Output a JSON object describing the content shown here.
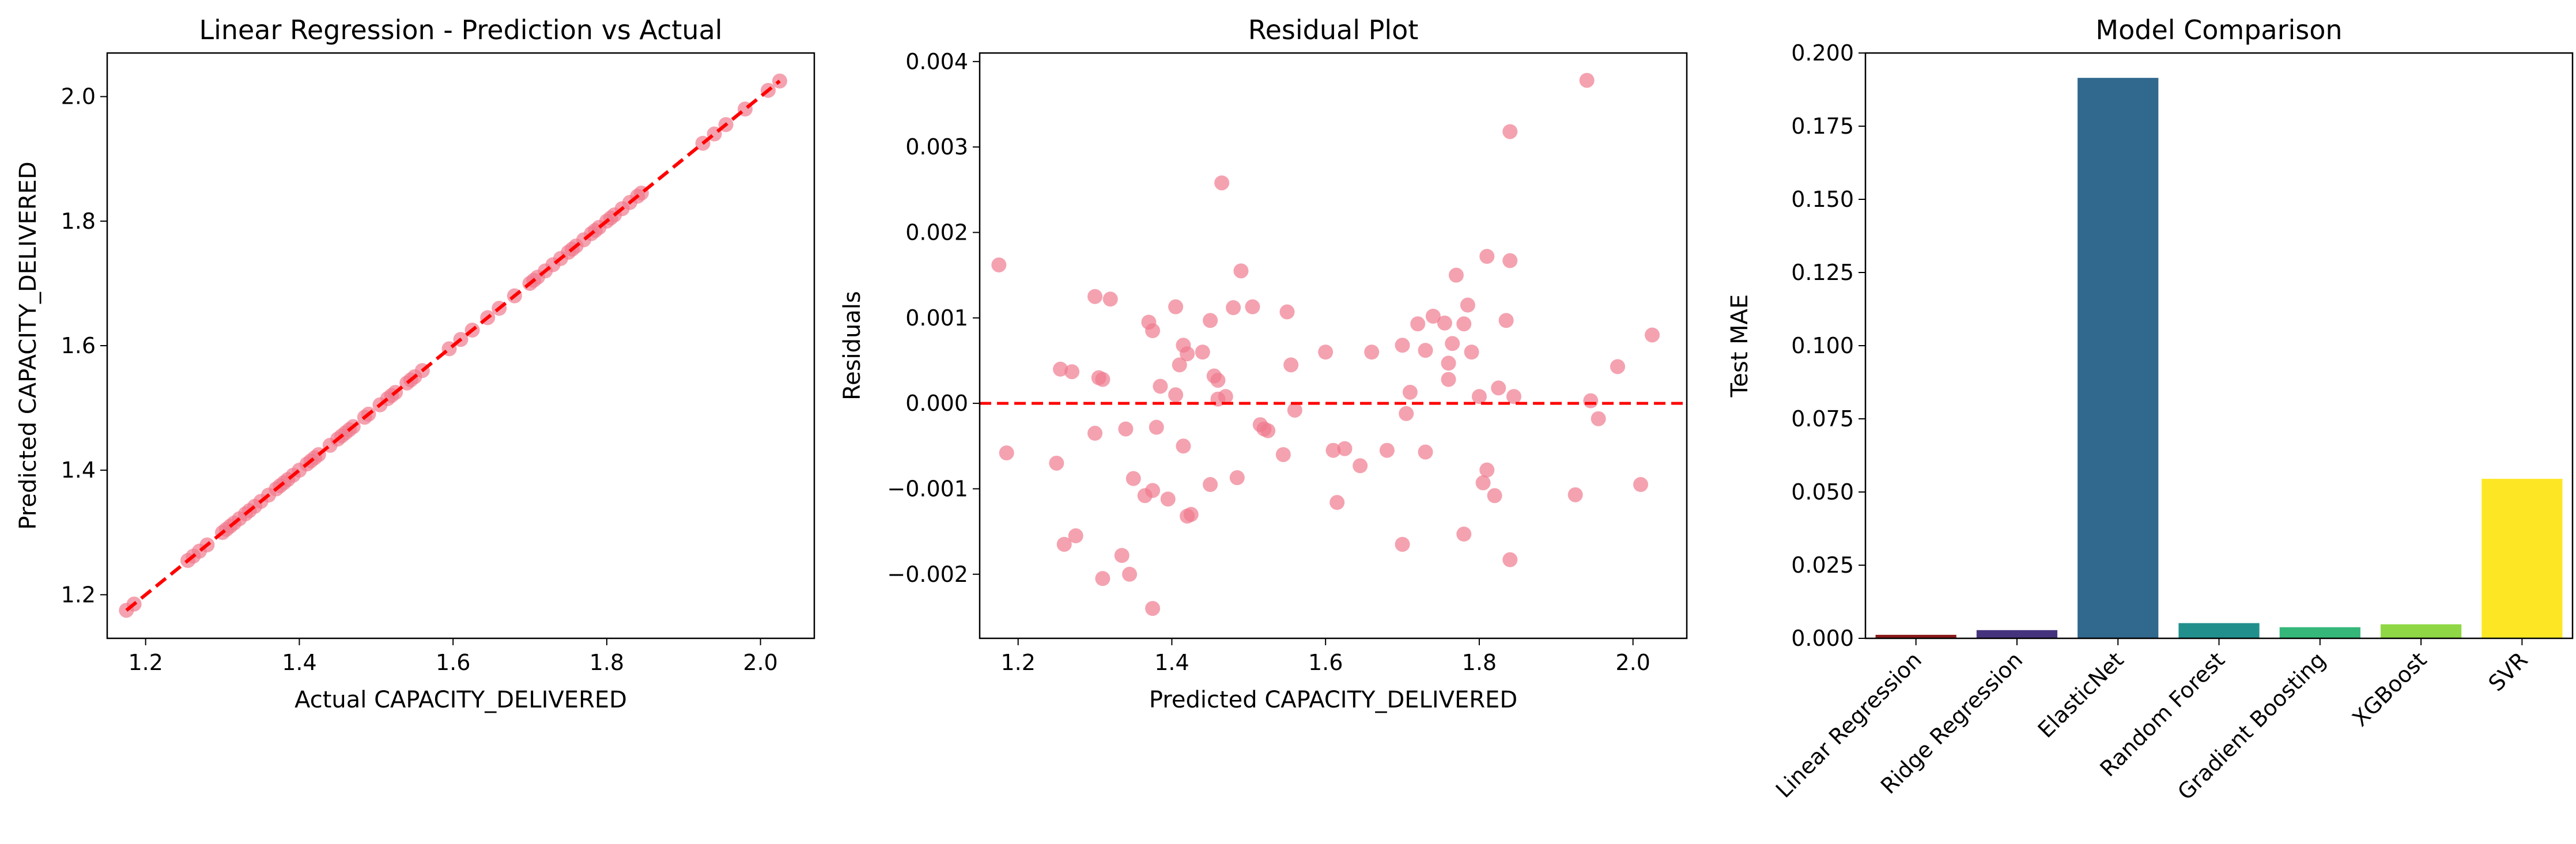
{
  "chart_data": [
    {
      "type": "scatter",
      "title": "Linear Regression - Prediction vs Actual",
      "xlabel": "Actual CAPACITY_DELIVERED",
      "ylabel": "Predicted CAPACITY_DELIVERED",
      "xlim": [
        1.15,
        2.07
      ],
      "ylim": [
        1.13,
        2.07
      ],
      "xticks": [
        1.2,
        1.4,
        1.6,
        1.8,
        2.0
      ],
      "xtick_labels": [
        "1.2",
        "1.4",
        "1.6",
        "1.8",
        "2.0"
      ],
      "yticks": [
        1.2,
        1.4,
        1.6,
        1.8,
        2.0
      ],
      "ytick_labels": [
        "1.2",
        "1.4",
        "1.6",
        "1.8",
        "2.0"
      ],
      "point_color": "#f07a8f",
      "reference_line": {
        "style": "dashed",
        "color": "#ff0000",
        "from": [
          1.175,
          1.175
        ],
        "to": [
          2.025,
          2.025
        ]
      },
      "points": [
        [
          1.175,
          1.175
        ],
        [
          1.185,
          1.185
        ],
        [
          1.255,
          1.255
        ],
        [
          1.262,
          1.262
        ],
        [
          1.27,
          1.27
        ],
        [
          1.28,
          1.28
        ],
        [
          1.3,
          1.3
        ],
        [
          1.305,
          1.305
        ],
        [
          1.31,
          1.31
        ],
        [
          1.315,
          1.315
        ],
        [
          1.322,
          1.322
        ],
        [
          1.33,
          1.33
        ],
        [
          1.335,
          1.335
        ],
        [
          1.342,
          1.342
        ],
        [
          1.35,
          1.35
        ],
        [
          1.36,
          1.36
        ],
        [
          1.37,
          1.37
        ],
        [
          1.375,
          1.375
        ],
        [
          1.38,
          1.38
        ],
        [
          1.385,
          1.385
        ],
        [
          1.392,
          1.392
        ],
        [
          1.4,
          1.4
        ],
        [
          1.41,
          1.41
        ],
        [
          1.415,
          1.415
        ],
        [
          1.42,
          1.42
        ],
        [
          1.425,
          1.425
        ],
        [
          1.44,
          1.44
        ],
        [
          1.45,
          1.45
        ],
        [
          1.455,
          1.455
        ],
        [
          1.46,
          1.46
        ],
        [
          1.465,
          1.465
        ],
        [
          1.47,
          1.47
        ],
        [
          1.485,
          1.485
        ],
        [
          1.49,
          1.49
        ],
        [
          1.505,
          1.505
        ],
        [
          1.515,
          1.515
        ],
        [
          1.52,
          1.52
        ],
        [
          1.525,
          1.525
        ],
        [
          1.54,
          1.54
        ],
        [
          1.545,
          1.545
        ],
        [
          1.55,
          1.55
        ],
        [
          1.56,
          1.56
        ],
        [
          1.595,
          1.595
        ],
        [
          1.61,
          1.61
        ],
        [
          1.625,
          1.625
        ],
        [
          1.645,
          1.645
        ],
        [
          1.66,
          1.66
        ],
        [
          1.68,
          1.68
        ],
        [
          1.7,
          1.7
        ],
        [
          1.705,
          1.705
        ],
        [
          1.71,
          1.71
        ],
        [
          1.72,
          1.72
        ],
        [
          1.73,
          1.73
        ],
        [
          1.74,
          1.74
        ],
        [
          1.75,
          1.75
        ],
        [
          1.755,
          1.755
        ],
        [
          1.76,
          1.76
        ],
        [
          1.77,
          1.77
        ],
        [
          1.78,
          1.78
        ],
        [
          1.785,
          1.785
        ],
        [
          1.79,
          1.79
        ],
        [
          1.8,
          1.8
        ],
        [
          1.805,
          1.805
        ],
        [
          1.81,
          1.81
        ],
        [
          1.82,
          1.82
        ],
        [
          1.83,
          1.83
        ],
        [
          1.84,
          1.84
        ],
        [
          1.845,
          1.845
        ],
        [
          1.925,
          1.925
        ],
        [
          1.94,
          1.94
        ],
        [
          1.955,
          1.955
        ],
        [
          1.98,
          1.98
        ],
        [
          2.01,
          2.01
        ],
        [
          2.025,
          2.025
        ]
      ]
    },
    {
      "type": "scatter",
      "title": "Residual Plot",
      "xlabel": "Predicted CAPACITY_DELIVERED",
      "ylabel": "Residuals",
      "xlim": [
        1.15,
        2.07
      ],
      "ylim": [
        -0.00275,
        0.0041
      ],
      "xticks": [
        1.2,
        1.4,
        1.6,
        1.8,
        2.0
      ],
      "xtick_labels": [
        "1.2",
        "1.4",
        "1.6",
        "1.8",
        "2.0"
      ],
      "yticks": [
        -0.002,
        -0.001,
        0.0,
        0.001,
        0.002,
        0.003,
        0.004
      ],
      "ytick_labels": [
        "−0.002",
        "−0.001",
        "0.000",
        "0.001",
        "0.002",
        "0.003",
        "0.004"
      ],
      "point_color": "#f07a8f",
      "reference_line": {
        "style": "dashed",
        "color": "#ff0000",
        "y": 0.0
      },
      "points": [
        [
          1.175,
          0.00162
        ],
        [
          1.185,
          -0.00058
        ],
        [
          1.25,
          -0.0007
        ],
        [
          1.255,
          0.0004
        ],
        [
          1.26,
          -0.00165
        ],
        [
          1.27,
          0.00037
        ],
        [
          1.275,
          -0.00155
        ],
        [
          1.3,
          0.00125
        ],
        [
          1.3,
          -0.00035
        ],
        [
          1.305,
          0.0003
        ],
        [
          1.31,
          0.00028
        ],
        [
          1.31,
          -0.00205
        ],
        [
          1.32,
          0.00122
        ],
        [
          1.335,
          -0.00178
        ],
        [
          1.34,
          -0.0003
        ],
        [
          1.345,
          -0.002
        ],
        [
          1.35,
          -0.00088
        ],
        [
          1.365,
          -0.00108
        ],
        [
          1.37,
          0.00095
        ],
        [
          1.375,
          0.00085
        ],
        [
          1.375,
          -0.00102
        ],
        [
          1.375,
          -0.0024
        ],
        [
          1.38,
          -0.00028
        ],
        [
          1.385,
          0.0002
        ],
        [
          1.395,
          -0.00112
        ],
        [
          1.405,
          0.00113
        ],
        [
          1.405,
          0.0001
        ],
        [
          1.41,
          0.00045
        ],
        [
          1.415,
          0.00068
        ],
        [
          1.415,
          -0.0005
        ],
        [
          1.42,
          0.00058
        ],
        [
          1.42,
          -0.00132
        ],
        [
          1.425,
          -0.0013
        ],
        [
          1.44,
          0.0006
        ],
        [
          1.45,
          0.00097
        ],
        [
          1.45,
          -0.00095
        ],
        [
          1.455,
          0.00032
        ],
        [
          1.46,
          0.00027
        ],
        [
          1.46,
          5e-05
        ],
        [
          1.465,
          0.00258
        ],
        [
          1.47,
          8e-05
        ],
        [
          1.48,
          0.00112
        ],
        [
          1.485,
          -0.00087
        ],
        [
          1.49,
          0.00155
        ],
        [
          1.505,
          0.00113
        ],
        [
          1.515,
          -0.00025
        ],
        [
          1.52,
          -0.0003
        ],
        [
          1.525,
          -0.00032
        ],
        [
          1.545,
          -0.0006
        ],
        [
          1.55,
          0.00107
        ],
        [
          1.555,
          0.00045
        ],
        [
          1.56,
          -8e-05
        ],
        [
          1.6,
          0.0006
        ],
        [
          1.61,
          -0.00055
        ],
        [
          1.615,
          -0.00116
        ],
        [
          1.625,
          -0.00053
        ],
        [
          1.645,
          -0.00073
        ],
        [
          1.66,
          0.0006
        ],
        [
          1.68,
          -0.00055
        ],
        [
          1.7,
          0.00068
        ],
        [
          1.7,
          -0.00165
        ],
        [
          1.705,
          -0.00012
        ],
        [
          1.71,
          0.00013
        ],
        [
          1.72,
          0.00093
        ],
        [
          1.73,
          0.00062
        ],
        [
          1.73,
          -0.00057
        ],
        [
          1.74,
          0.00102
        ],
        [
          1.755,
          0.00094
        ],
        [
          1.76,
          0.00047
        ],
        [
          1.76,
          0.00028
        ],
        [
          1.765,
          0.0007
        ],
        [
          1.77,
          0.0015
        ],
        [
          1.78,
          0.00093
        ],
        [
          1.78,
          -0.00153
        ],
        [
          1.785,
          0.00115
        ],
        [
          1.79,
          0.0006
        ],
        [
          1.8,
          8e-05
        ],
        [
          1.805,
          -0.00093
        ],
        [
          1.81,
          0.00172
        ],
        [
          1.81,
          -0.00078
        ],
        [
          1.82,
          -0.00108
        ],
        [
          1.825,
          0.00018
        ],
        [
          1.835,
          0.00097
        ],
        [
          1.84,
          0.00167
        ],
        [
          1.84,
          0.00318
        ],
        [
          1.84,
          -0.00183
        ],
        [
          1.845,
          8e-05
        ],
        [
          1.925,
          -0.00107
        ],
        [
          1.94,
          0.00378
        ],
        [
          1.945,
          3e-05
        ],
        [
          1.955,
          -0.00018
        ],
        [
          1.98,
          0.00043
        ],
        [
          2.01,
          -0.00095
        ],
        [
          2.025,
          0.0008
        ]
      ]
    },
    {
      "type": "bar",
      "title": "Model Comparison",
      "xlabel": "",
      "ylabel": "Test MAE",
      "ylim": [
        0,
        0.2
      ],
      "yticks": [
        0.0,
        0.025,
        0.05,
        0.075,
        0.1,
        0.125,
        0.15,
        0.175,
        0.2
      ],
      "ytick_labels": [
        "0.000",
        "0.025",
        "0.050",
        "0.075",
        "0.100",
        "0.125",
        "0.150",
        "0.175",
        "0.200"
      ],
      "categories": [
        "Linear Regression",
        "Ridge Regression",
        "ElasticNet",
        "Random Forest",
        "Gradient Boosting",
        "XGBoost",
        "SVR"
      ],
      "values": [
        0.0012,
        0.0028,
        0.1915,
        0.0052,
        0.0038,
        0.0048,
        0.0545
      ],
      "colors": [
        "#8b1a1a",
        "#46337e",
        "#30688e",
        "#21908d",
        "#35b779",
        "#8fd744",
        "#fde725"
      ]
    }
  ]
}
